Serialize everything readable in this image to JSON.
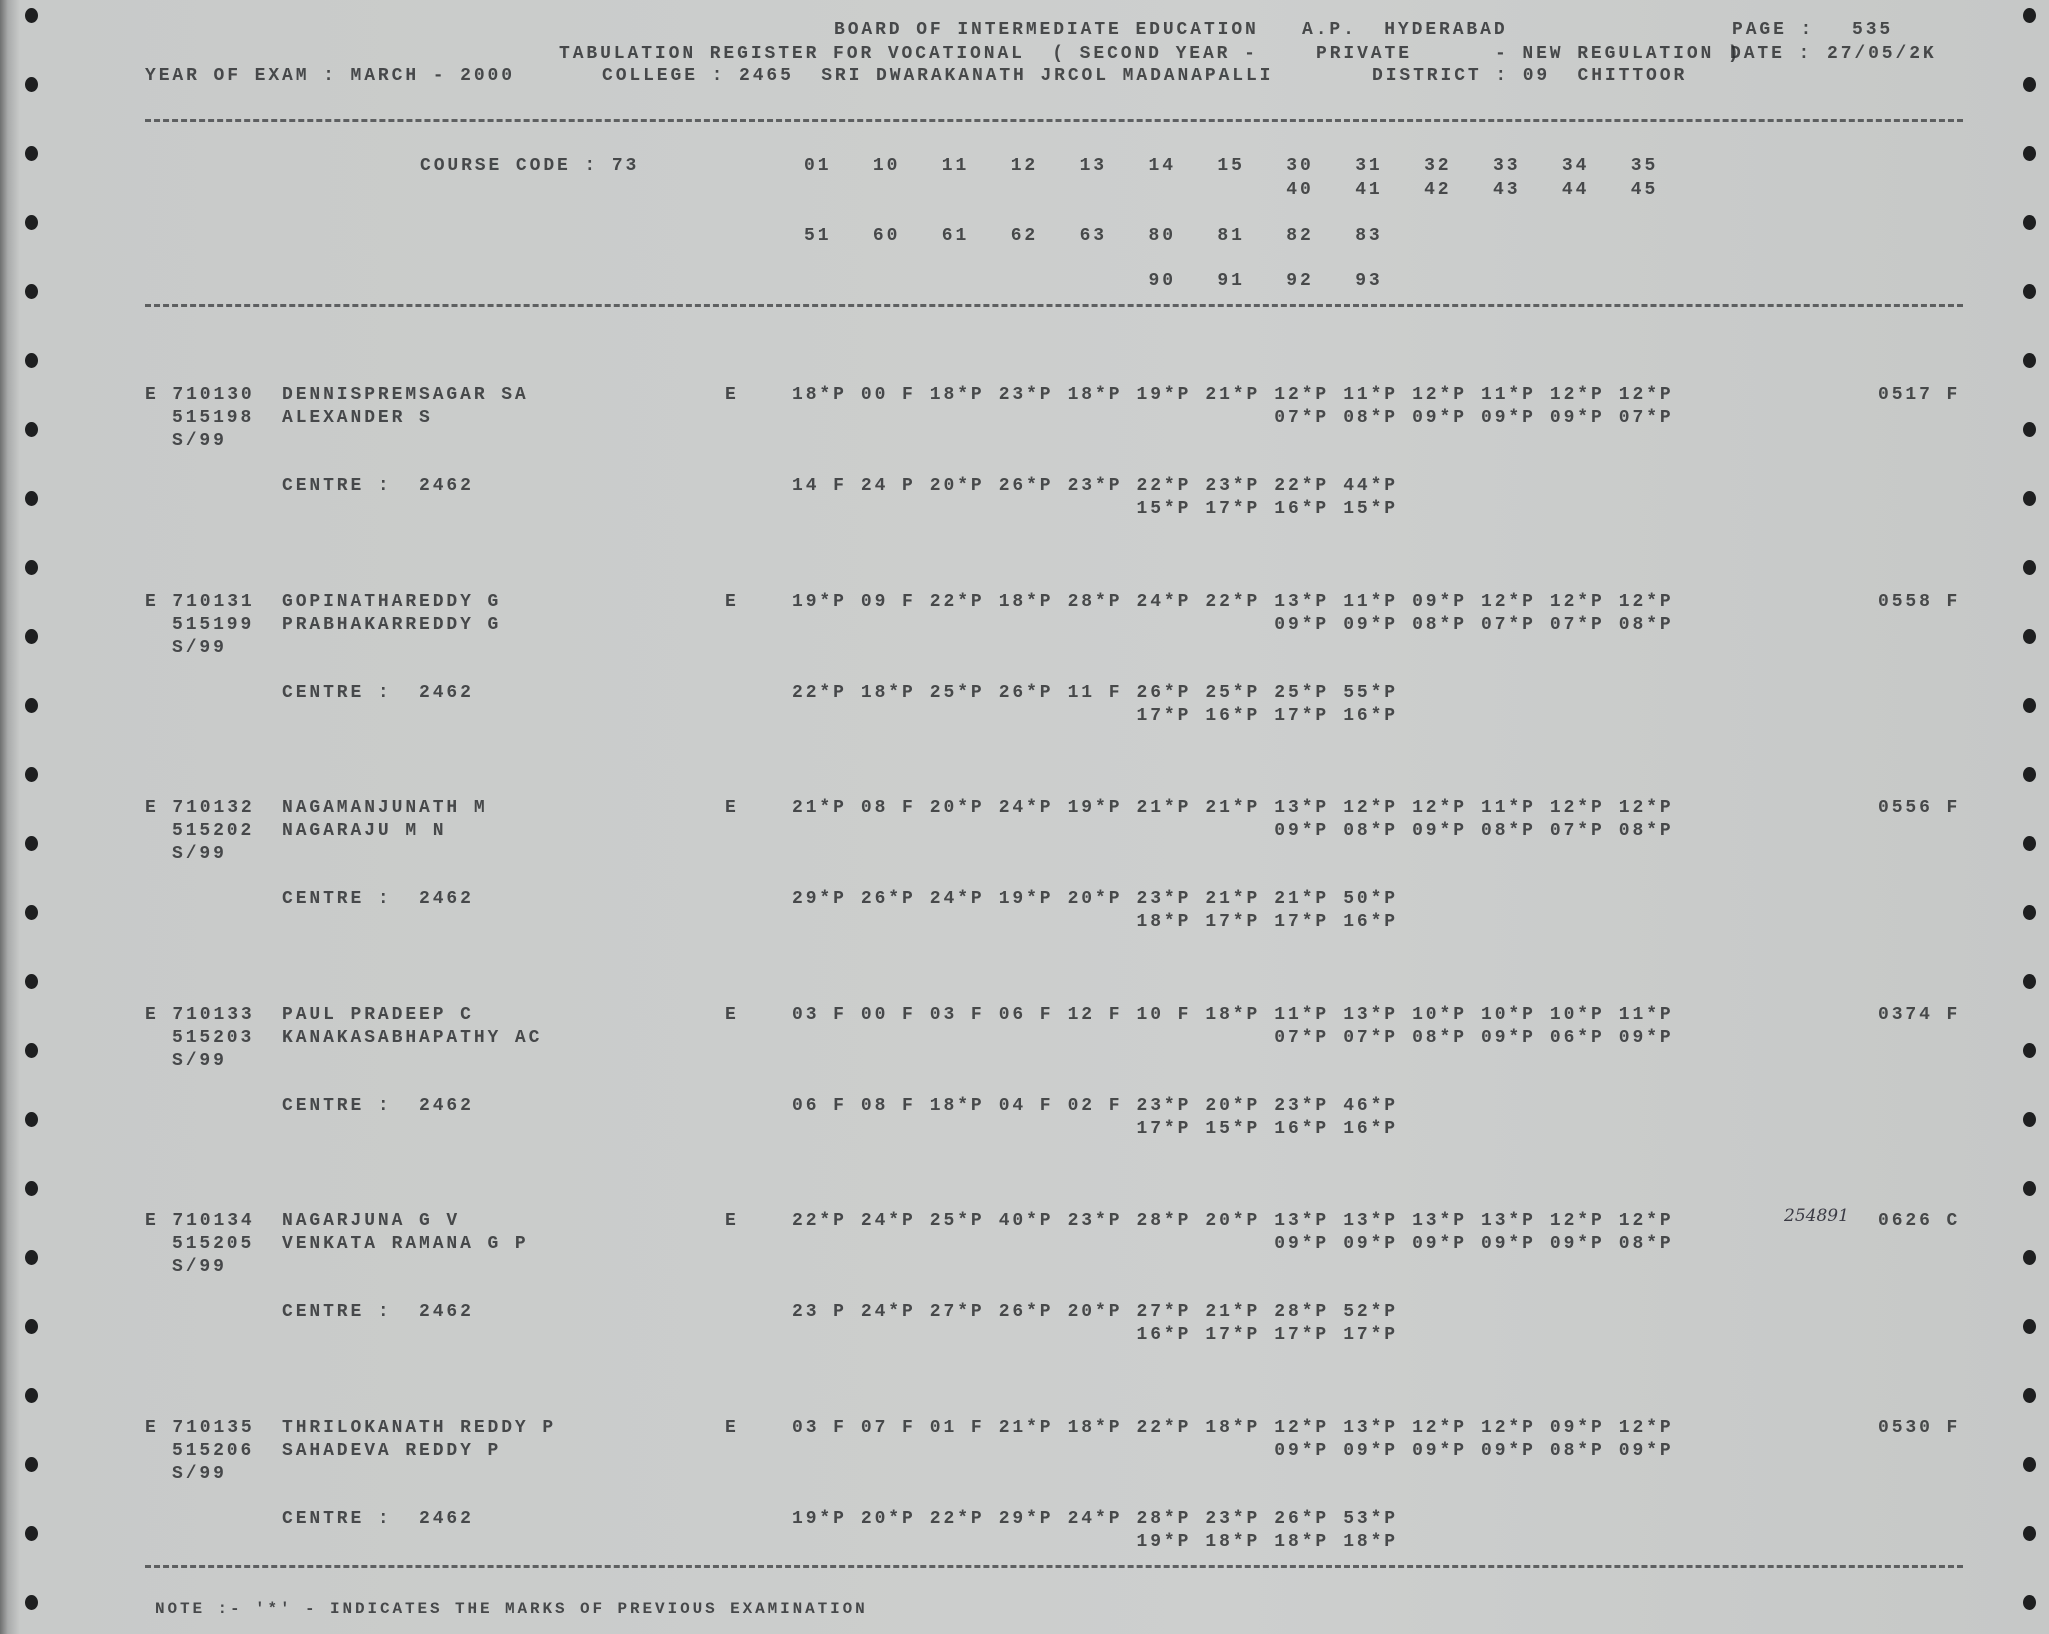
{
  "header": {
    "board": "BOARD OF INTERMEDIATE EDUCATION",
    "location": "A.P.  HYDERABAD",
    "page_label": "PAGE :",
    "page": "535",
    "register": "TABULATION REGISTER FOR VOCATIONAL  ( SECOND YEAR -",
    "category": "PRIVATE",
    "regulation": "- NEW REGULATION )",
    "date_label": "DATE :",
    "date": "27/05/2K",
    "year_of_exam": "YEAR OF EXAM : MARCH - 2000",
    "college": "COLLEGE : 2465  SRI DWARAKANATH JRCOL MADANAPALLI",
    "district": "DISTRICT : 09  CHITTOOR"
  },
  "course": {
    "label": "COURSE CODE : 73",
    "row1": [
      "01",
      "10",
      "11",
      "12",
      "13",
      "14",
      "15",
      "30",
      "31",
      "32",
      "33",
      "34",
      "35"
    ],
    "row2": [
      "40",
      "41",
      "42",
      "43",
      "44",
      "45"
    ],
    "row3": [
      "51",
      "60",
      "61",
      "62",
      "63",
      "80",
      "81",
      "82",
      "83"
    ],
    "row4": [
      "90",
      "91",
      "92",
      "93"
    ]
  },
  "records": [
    {
      "roll": "E 710130",
      "id": "515198",
      "session": "S/99",
      "name": "DENNISPREMSAGAR SA",
      "father": "ALEXANDER S",
      "stream": "E",
      "marks1": [
        "18*P",
        "00 F",
        "18*P",
        "23*P",
        "18*P",
        "19*P",
        "21*P",
        "12*P",
        "11*P",
        "12*P",
        "11*P",
        "12*P",
        "12*P"
      ],
      "marks2": [
        "07*P",
        "08*P",
        "09*P",
        "09*P",
        "09*P",
        "07*P"
      ],
      "centre": "CENTRE :  2462",
      "cmarks1": [
        "14 F",
        "24 P",
        "20*P",
        "26*P",
        "23*P",
        "22*P",
        "23*P",
        "22*P",
        "44*P"
      ],
      "cmarks2": [
        "15*P",
        "17*P",
        "16*P",
        "15*P"
      ],
      "total": "0517 F"
    },
    {
      "roll": "E 710131",
      "id": "515199",
      "session": "S/99",
      "name": "GOPINATHAREDDY G",
      "father": "PRABHAKARREDDY G",
      "stream": "E",
      "marks1": [
        "19*P",
        "09 F",
        "22*P",
        "18*P",
        "28*P",
        "24*P",
        "22*P",
        "13*P",
        "11*P",
        "09*P",
        "12*P",
        "12*P",
        "12*P"
      ],
      "marks2": [
        "09*P",
        "09*P",
        "08*P",
        "07*P",
        "07*P",
        "08*P"
      ],
      "centre": "CENTRE :  2462",
      "cmarks1": [
        "22*P",
        "18*P",
        "25*P",
        "26*P",
        "11 F",
        "26*P",
        "25*P",
        "25*P",
        "55*P"
      ],
      "cmarks2": [
        "17*P",
        "16*P",
        "17*P",
        "16*P"
      ],
      "total": "0558 F"
    },
    {
      "roll": "E 710132",
      "id": "515202",
      "session": "S/99",
      "name": "NAGAMANJUNATH M",
      "father": "NAGARAJU M N",
      "stream": "E",
      "marks1": [
        "21*P",
        "08 F",
        "20*P",
        "24*P",
        "19*P",
        "21*P",
        "21*P",
        "13*P",
        "12*P",
        "12*P",
        "11*P",
        "12*P",
        "12*P"
      ],
      "marks2": [
        "09*P",
        "08*P",
        "09*P",
        "08*P",
        "07*P",
        "08*P"
      ],
      "centre": "CENTRE :  2462",
      "cmarks1": [
        "29*P",
        "26*P",
        "24*P",
        "19*P",
        "20*P",
        "23*P",
        "21*P",
        "21*P",
        "50*P"
      ],
      "cmarks2": [
        "18*P",
        "17*P",
        "17*P",
        "16*P"
      ],
      "total": "0556 F"
    },
    {
      "roll": "E 710133",
      "id": "515203",
      "session": "S/99",
      "name": "PAUL PRADEEP C",
      "father": "KANAKASABHAPATHY AC",
      "stream": "E",
      "marks1": [
        "03 F",
        "00 F",
        "03 F",
        "06 F",
        "12 F",
        "10 F",
        "18*P",
        "11*P",
        "13*P",
        "10*P",
        "10*P",
        "10*P",
        "11*P"
      ],
      "marks2": [
        "07*P",
        "07*P",
        "08*P",
        "09*P",
        "06*P",
        "09*P"
      ],
      "centre": "CENTRE :  2462",
      "cmarks1": [
        "06 F",
        "08 F",
        "18*P",
        "04 F",
        "02 F",
        "23*P",
        "20*P",
        "23*P",
        "46*P"
      ],
      "cmarks2": [
        "17*P",
        "15*P",
        "16*P",
        "16*P"
      ],
      "total": "0374 F"
    },
    {
      "roll": "E 710134",
      "id": "515205",
      "session": "S/99",
      "name": "NAGARJUNA G V",
      "father": "VENKATA RAMANA G P",
      "stream": "E",
      "marks1": [
        "22*P",
        "24*P",
        "25*P",
        "40*P",
        "23*P",
        "28*P",
        "20*P",
        "13*P",
        "13*P",
        "13*P",
        "13*P",
        "12*P",
        "12*P"
      ],
      "marks2": [
        "09*P",
        "09*P",
        "09*P",
        "09*P",
        "09*P",
        "08*P"
      ],
      "centre": "CENTRE :  2462",
      "cmarks1": [
        "23 P",
        "24*P",
        "27*P",
        "26*P",
        "20*P",
        "27*P",
        "21*P",
        "28*P",
        "52*P"
      ],
      "cmarks2": [
        "16*P",
        "17*P",
        "17*P",
        "17*P"
      ],
      "total": "0626 C",
      "handwritten": "254891"
    },
    {
      "roll": "E 710135",
      "id": "515206",
      "session": "S/99",
      "name": "THRILOKANATH REDDY P",
      "father": "SAHADEVA REDDY P",
      "stream": "E",
      "marks1": [
        "03 F",
        "07 F",
        "01 F",
        "21*P",
        "18*P",
        "22*P",
        "18*P",
        "12*P",
        "13*P",
        "12*P",
        "12*P",
        "09*P",
        "12*P"
      ],
      "marks2": [
        "09*P",
        "09*P",
        "09*P",
        "09*P",
        "08*P",
        "09*P"
      ],
      "centre": "CENTRE :  2462",
      "cmarks1": [
        "19*P",
        "20*P",
        "22*P",
        "29*P",
        "24*P",
        "28*P",
        "23*P",
        "26*P",
        "53*P"
      ],
      "cmarks2": [
        "19*P",
        "18*P",
        "18*P",
        "18*P"
      ],
      "total": "0530 F"
    }
  ],
  "note": "NOTE :- '*' - INDICATES THE MARKS OF PREVIOUS EXAMINATION"
}
